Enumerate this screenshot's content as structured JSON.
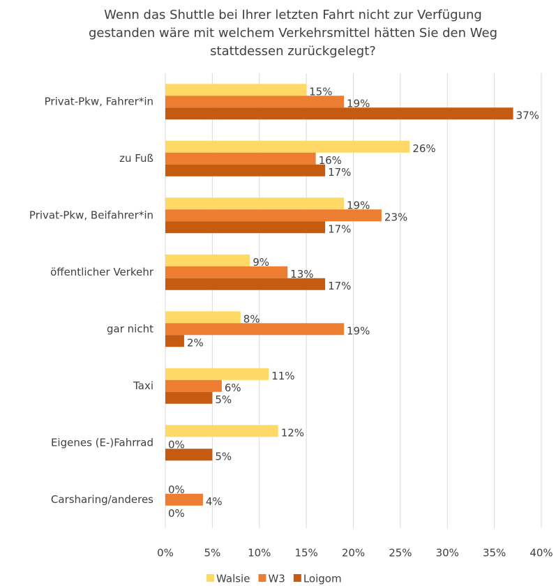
{
  "chart_data": {
    "type": "hbar",
    "title": "Wenn das Shuttle bei Ihrer letzten Fahrt nicht zur Verfügung gestanden wäre mit welchem Verkehrsmittel hätten Sie den Weg stattdessen zurückgelegt?",
    "categories": [
      "Privat-Pkw, Fahrer*in",
      "zu Fuß",
      "Privat-Pkw, Beifahrer*in",
      "öffentlicher Verkehr",
      "gar nicht",
      "Taxi",
      "Eigenes (E-)Fahrrad",
      "Carsharing/anderes"
    ],
    "series": [
      {
        "name": "Walsie",
        "color": "#FFD966",
        "values": [
          15,
          26,
          19,
          9,
          8,
          11,
          12,
          0
        ],
        "value_labels": [
          "15%",
          "26%",
          "19%",
          "9%",
          "8%",
          "11%",
          "12%",
          "0%"
        ]
      },
      {
        "name": "W3",
        "color": "#ED7D31",
        "values": [
          19,
          16,
          23,
          13,
          19,
          6,
          0,
          4
        ],
        "value_labels": [
          "19%",
          "16%",
          "23%",
          "13%",
          "19%",
          "6%",
          "0%",
          "4%"
        ]
      },
      {
        "name": "Loigom",
        "color": "#C55A11",
        "values": [
          37,
          17,
          17,
          17,
          2,
          5,
          5,
          0
        ],
        "value_labels": [
          "37%",
          "17%",
          "17%",
          "17%",
          "2%",
          "5%",
          "5%",
          "0%"
        ]
      }
    ],
    "xlim": [
      0,
      40
    ],
    "xticks": [
      {
        "value": 0,
        "label": "0%"
      },
      {
        "value": 5,
        "label": "5%"
      },
      {
        "value": 10,
        "label": "10%"
      },
      {
        "value": 15,
        "label": "15%"
      },
      {
        "value": 20,
        "label": "20%"
      },
      {
        "value": 25,
        "label": "25%"
      },
      {
        "value": 30,
        "label": "30%"
      },
      {
        "value": 35,
        "label": "35%"
      },
      {
        "value": 40,
        "label": "40%"
      }
    ],
    "grid": true,
    "legend": "bottom"
  }
}
